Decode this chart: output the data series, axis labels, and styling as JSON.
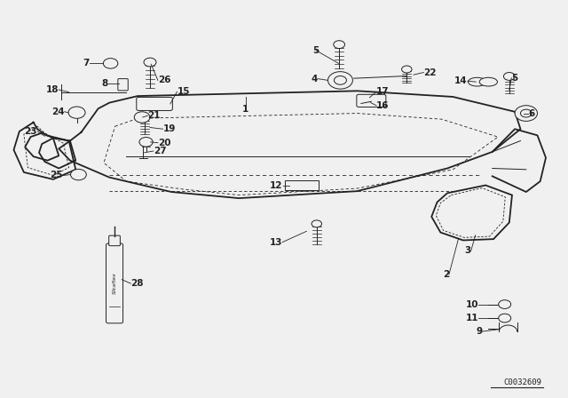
{
  "bg_color": "#f0f0f0",
  "doc_number": "C0032609",
  "fig_width": 6.4,
  "fig_height": 4.48,
  "dpi": 100,
  "line_color": "#222222",
  "label_fontsize": 7.5,
  "doc_fontsize": 6.5
}
